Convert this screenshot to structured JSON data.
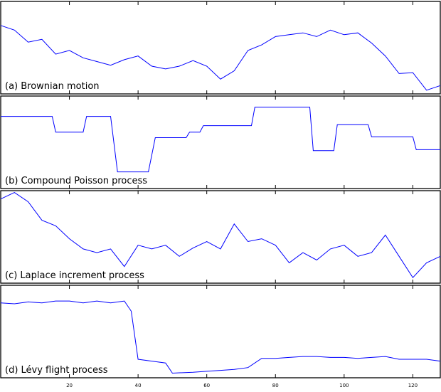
{
  "chart_data": [
    {
      "type": "line",
      "title": "(a) Brownian motion",
      "color": "#0000ff",
      "xlim": [
        0,
        128
      ],
      "ylim": [
        0,
        100
      ],
      "xticks": [
        20,
        40,
        60,
        80,
        100,
        120
      ],
      "x": [
        0,
        4,
        8,
        12,
        16,
        20,
        24,
        28,
        32,
        36,
        40,
        44,
        48,
        52,
        56,
        60,
        64,
        68,
        72,
        76,
        80,
        84,
        88,
        92,
        96,
        100,
        104,
        108,
        112,
        116,
        120,
        124,
        128
      ],
      "values": [
        74,
        69,
        56,
        59,
        43,
        47,
        39,
        35,
        31,
        37,
        41,
        30,
        27,
        30,
        36,
        30,
        16,
        25,
        47,
        53,
        62,
        64,
        66,
        62,
        69,
        64,
        66,
        55,
        41,
        22,
        23,
        4,
        9
      ]
    },
    {
      "type": "line",
      "title": "(b) Compound Poisson process",
      "color": "#0000ff",
      "xlim": [
        0,
        128
      ],
      "ylim": [
        0,
        100
      ],
      "xticks": [
        20,
        40,
        60,
        80,
        100,
        120
      ],
      "x": [
        0,
        15,
        16,
        24,
        25,
        32,
        34,
        43,
        45,
        54,
        55,
        58,
        59,
        73,
        74,
        90,
        91,
        97,
        98,
        107,
        108,
        120,
        121,
        128
      ],
      "values": [
        78,
        78,
        61,
        61,
        78,
        78,
        18,
        18,
        55,
        55,
        61,
        61,
        68,
        68,
        88,
        88,
        41,
        41,
        69,
        69,
        56,
        56,
        42,
        42
      ]
    },
    {
      "type": "line",
      "title": "(c) Laplace increment process",
      "color": "#0000ff",
      "xlim": [
        0,
        128
      ],
      "ylim": [
        0,
        100
      ],
      "xticks": [
        20,
        40,
        60,
        80,
        100,
        120
      ],
      "x": [
        0,
        4,
        8,
        12,
        16,
        20,
        24,
        28,
        32,
        36,
        40,
        44,
        48,
        52,
        56,
        60,
        64,
        68,
        72,
        76,
        80,
        84,
        88,
        92,
        96,
        100,
        104,
        108,
        112,
        116,
        120,
        124,
        128
      ],
      "values": [
        91,
        98,
        88,
        68,
        62,
        48,
        37,
        33,
        37,
        18,
        41,
        37,
        41,
        29,
        38,
        45,
        37,
        64,
        45,
        48,
        41,
        22,
        33,
        25,
        37,
        41,
        29,
        33,
        52,
        29,
        6,
        22,
        29
      ]
    },
    {
      "type": "line",
      "title": "(d) Lévy flight process",
      "color": "#0000ff",
      "xlim": [
        0,
        128
      ],
      "ylim": [
        0,
        100
      ],
      "xticks": [
        20,
        40,
        60,
        80,
        100,
        120
      ],
      "x": [
        0,
        4,
        8,
        12,
        16,
        20,
        24,
        28,
        32,
        36,
        38,
        40,
        44,
        48,
        50,
        56,
        60,
        64,
        68,
        72,
        76,
        80,
        84,
        88,
        92,
        96,
        100,
        104,
        108,
        112,
        116,
        120,
        124,
        128
      ],
      "values": [
        81,
        80,
        82,
        81,
        83,
        83,
        81,
        83,
        81,
        83,
        72,
        20,
        18,
        16,
        5,
        6,
        7,
        8,
        9,
        11,
        21,
        21,
        22,
        23,
        23,
        22,
        22,
        21,
        22,
        23,
        20,
        20,
        20,
        18
      ]
    }
  ]
}
